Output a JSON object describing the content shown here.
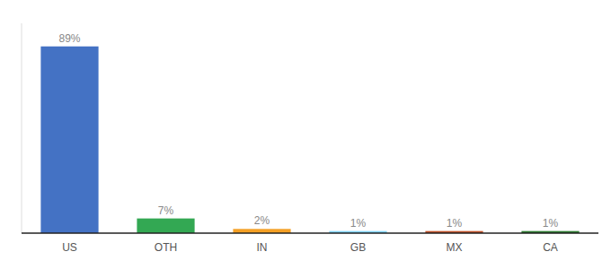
{
  "chart_data": {
    "type": "bar",
    "categories": [
      "US",
      "OTH",
      "IN",
      "GB",
      "MX",
      "CA"
    ],
    "values": [
      89,
      7,
      2,
      1,
      1,
      1
    ],
    "value_labels": [
      "89%",
      "7%",
      "2%",
      "1%",
      "1%",
      "1%"
    ],
    "colors": [
      "#4472C4",
      "#33A853",
      "#F4A025",
      "#81D4F7",
      "#C0522A",
      "#2E7D32"
    ],
    "ylim": [
      0,
      100
    ],
    "data_labels": true,
    "tick_labels": "x",
    "grid": false
  }
}
